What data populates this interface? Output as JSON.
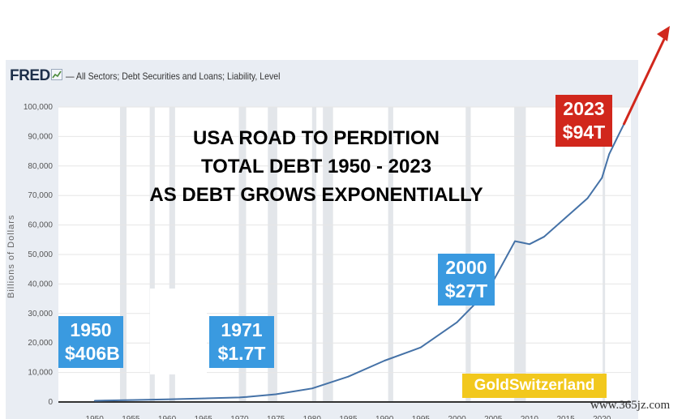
{
  "header": {
    "logo_text": "FRED",
    "legend_text": "— All Sectors; Debt Securities and Loans; Liability, Level"
  },
  "colors": {
    "series": "#4572a7",
    "arrow": "#d1271c",
    "callout_blue": "#3a9ae0",
    "callout_red": "#d1271c",
    "brand_bg": "#f2c81d",
    "plot_bg": "#e9edf3"
  },
  "overlay": {
    "title_lines": [
      "USA ROAD TO PERDITION",
      "TOTAL DEBT 1950 - 2023",
      "AS DEBT GROWS EXPONENTIALLY"
    ],
    "callouts": [
      {
        "year": "1950",
        "value": "$406B"
      },
      {
        "year": "1971",
        "value": "$1.7T"
      },
      {
        "year": "2000",
        "value": "$27T"
      },
      {
        "year": "2023",
        "value": "$94T"
      }
    ],
    "brand": "GoldSwitzerland",
    "watermark": "www.365jz.com"
  },
  "chart_data": {
    "type": "line",
    "title": "",
    "xlabel": "",
    "ylabel": "Billions of Dollars",
    "ylim": [
      0,
      100000
    ],
    "xlim": [
      1945,
      2024
    ],
    "grid": true,
    "recession_shading": true,
    "yticks": [
      "0",
      "10,000",
      "20,000",
      "30,000",
      "40,000",
      "50,000",
      "60,000",
      "70,000",
      "80,000",
      "90,000",
      "100,000"
    ],
    "xticks": [
      "1950",
      "1955",
      "1960",
      "1965",
      "1970",
      "1975",
      "1980",
      "1985",
      "1990",
      "1995",
      "2000",
      "2005",
      "2010",
      "2015",
      "2020"
    ],
    "series": [
      {
        "name": "All Sectors; Debt Securities and Loans; Liability, Level",
        "x": [
          1950,
          1955,
          1960,
          1965,
          1970,
          1971,
          1975,
          1980,
          1985,
          1990,
          1995,
          2000,
          2003,
          2005,
          2007,
          2008,
          2009,
          2010,
          2012,
          2015,
          2018,
          2020,
          2021,
          2022,
          2023
        ],
        "y": [
          406,
          650,
          900,
          1200,
          1550,
          1700,
          2600,
          4600,
          8600,
          14000,
          18500,
          27000,
          34500,
          41000,
          50000,
          54500,
          54000,
          53500,
          56000,
          62500,
          69000,
          76000,
          84000,
          89000,
          94000
        ]
      }
    ]
  }
}
